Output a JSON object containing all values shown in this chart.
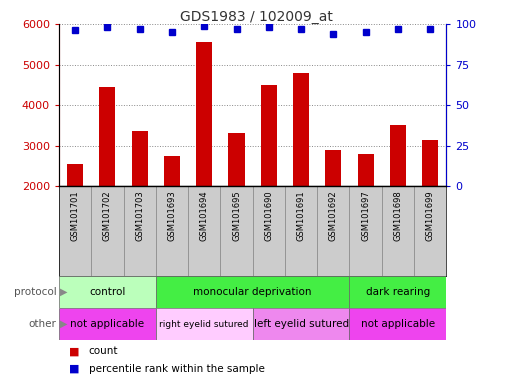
{
  "title": "GDS1983 / 102009_at",
  "samples": [
    "GSM101701",
    "GSM101702",
    "GSM101703",
    "GSM101693",
    "GSM101694",
    "GSM101695",
    "GSM101690",
    "GSM101691",
    "GSM101692",
    "GSM101697",
    "GSM101698",
    "GSM101699"
  ],
  "counts": [
    2550,
    4450,
    3350,
    2750,
    5550,
    3300,
    4500,
    4800,
    2900,
    2800,
    3500,
    3150
  ],
  "percentile_ranks": [
    96,
    98,
    97,
    95,
    99,
    97,
    98,
    97,
    94,
    95,
    97,
    97
  ],
  "ylim_left": [
    2000,
    6000
  ],
  "ylim_right": [
    0,
    100
  ],
  "yticks_left": [
    2000,
    3000,
    4000,
    5000,
    6000
  ],
  "yticks_right": [
    0,
    25,
    50,
    75,
    100
  ],
  "bar_color": "#cc0000",
  "dot_color": "#0000cc",
  "protocol_groups": [
    {
      "label": "control",
      "start": 0,
      "end": 3,
      "color": "#bbffbb"
    },
    {
      "label": "monocular deprivation",
      "start": 3,
      "end": 9,
      "color": "#44ee44"
    },
    {
      "label": "dark rearing",
      "start": 9,
      "end": 12,
      "color": "#44ee44"
    }
  ],
  "other_groups": [
    {
      "label": "not applicable",
      "start": 0,
      "end": 3,
      "color": "#ee44ee"
    },
    {
      "label": "right eyelid sutured",
      "start": 3,
      "end": 6,
      "color": "#ffccff"
    },
    {
      "label": "left eyelid sutured",
      "start": 6,
      "end": 9,
      "color": "#ee88ee"
    },
    {
      "label": "not applicable",
      "start": 9,
      "end": 12,
      "color": "#ee44ee"
    }
  ],
  "legend_items": [
    {
      "label": "count",
      "color": "#cc0000"
    },
    {
      "label": "percentile rank within the sample",
      "color": "#0000cc"
    }
  ],
  "background_color": "#ffffff",
  "grid_color": "#888888",
  "tick_label_color_left": "#cc0000",
  "tick_label_color_right": "#0000cc",
  "title_color": "#333333",
  "label_area_color": "#cccccc",
  "label_area_border": "#888888"
}
